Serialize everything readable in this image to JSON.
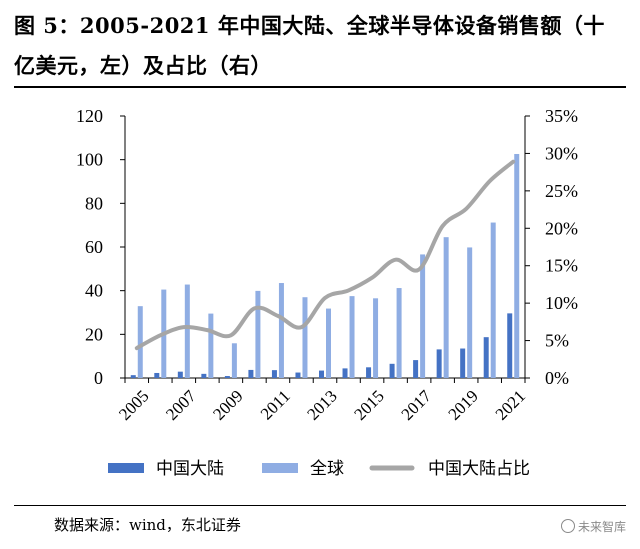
{
  "title": "图 5：2005-2021 年中国大陆、全球半导体设备销售额（十亿美元，左）及占比（右）",
  "source": "数据来源：wind，东北证券",
  "watermark": "未来智库",
  "colors": {
    "china": "#4472c4",
    "global": "#8fade3",
    "share": "#a6a6a6"
  },
  "chart_data": {
    "type": "bar",
    "categories": [
      "2005",
      "2006",
      "2007",
      "2008",
      "2009",
      "2010",
      "2011",
      "2012",
      "2013",
      "2014",
      "2015",
      "2016",
      "2017",
      "2018",
      "2019",
      "2020",
      "2021"
    ],
    "x_tick_labels": [
      "2005",
      "2007",
      "2009",
      "2011",
      "2013",
      "2015",
      "2017",
      "2019",
      "2021"
    ],
    "series": [
      {
        "name": "中国大陆",
        "axis": "left",
        "type": "bar",
        "values": [
          1.3,
          2.3,
          2.9,
          1.9,
          0.9,
          3.7,
          3.6,
          2.5,
          3.4,
          4.4,
          4.9,
          6.5,
          8.2,
          13.1,
          13.5,
          18.7,
          29.6
        ]
      },
      {
        "name": "全球",
        "axis": "left",
        "type": "bar",
        "values": [
          32.9,
          40.5,
          42.8,
          29.5,
          15.9,
          39.9,
          43.5,
          37.0,
          31.8,
          37.5,
          36.5,
          41.2,
          56.6,
          64.5,
          59.8,
          71.2,
          102.6
        ]
      },
      {
        "name": "中国大陆占比",
        "axis": "right",
        "type": "line",
        "values": [
          4.0,
          5.7,
          6.8,
          6.4,
          5.7,
          9.3,
          8.3,
          6.8,
          10.7,
          11.7,
          13.4,
          15.8,
          14.5,
          20.3,
          22.6,
          26.3,
          28.9
        ]
      }
    ],
    "yleft_ticks": [
      "0",
      "20",
      "40",
      "60",
      "80",
      "100",
      "120"
    ],
    "yleft_lim": [
      0,
      120
    ],
    "yright_ticks": [
      "0%",
      "5%",
      "10%",
      "15%",
      "20%",
      "25%",
      "30%",
      "35%"
    ],
    "yright_lim": [
      0,
      35
    ],
    "legend_position": "bottom",
    "grid": false
  }
}
